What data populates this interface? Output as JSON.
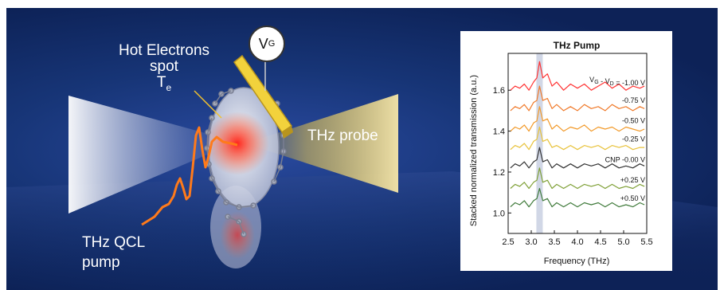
{
  "illustration": {
    "hot_label_line1": "Hot Electrons",
    "hot_label_line2": "spot",
    "te_main": "T",
    "te_sub": "e",
    "probe_label": "THz probe",
    "pump_label_line1": "THz QCL",
    "pump_label_line2": "pump",
    "vg_main": "V",
    "vg_sub": "G",
    "colors": {
      "background": "#0d2257",
      "pump_pulse": "#ff7a1a",
      "hot_spot": "#ff2a1a",
      "electrode": "#f2d23c",
      "probe_beam": "#e8c64a"
    }
  },
  "chart_data": {
    "type": "line",
    "title": "THz Pump",
    "xlabel": "Frequency (THz)",
    "ylabel": "Stacked normalized transmission (a.u.)",
    "xlim": [
      2.5,
      5.5
    ],
    "ylim": [
      0.9,
      1.78
    ],
    "xticks": [
      "2.5",
      "3.0",
      "3.5",
      "4.0",
      "4.5",
      "5.0",
      "5.5"
    ],
    "yticks": [
      "1.0",
      "1.2",
      "1.4",
      "1.6"
    ],
    "highlight_band_x": 3.18,
    "series": [
      {
        "name": "V_G - V_D = -1.00 V",
        "label_main": "V",
        "label_sub1": "G",
        "label_mid": " - V",
        "label_sub2": "D",
        "label_end": " = -1.00 V",
        "color": "#ff3333",
        "offset": 1.62,
        "x": [
          2.55,
          2.65,
          2.75,
          2.85,
          2.95,
          3.05,
          3.12,
          3.18,
          3.25,
          3.35,
          3.45,
          3.55,
          3.7,
          3.85,
          4.0,
          4.15,
          4.3,
          4.45,
          4.6,
          4.75,
          4.9,
          5.05,
          5.2,
          5.35,
          5.45
        ],
        "y": [
          1.6,
          1.62,
          1.61,
          1.63,
          1.6,
          1.64,
          1.66,
          1.74,
          1.66,
          1.68,
          1.62,
          1.64,
          1.6,
          1.63,
          1.61,
          1.63,
          1.6,
          1.62,
          1.64,
          1.61,
          1.63,
          1.6,
          1.62,
          1.61,
          1.62
        ]
      },
      {
        "name": "-0.75 V",
        "color": "#f07a2a",
        "offset": 1.52,
        "x": [
          2.55,
          2.65,
          2.75,
          2.85,
          2.95,
          3.05,
          3.12,
          3.18,
          3.25,
          3.35,
          3.45,
          3.55,
          3.7,
          3.85,
          4.0,
          4.15,
          4.3,
          4.45,
          4.6,
          4.75,
          4.9,
          5.05,
          5.2,
          5.35,
          5.45
        ],
        "y": [
          1.5,
          1.52,
          1.51,
          1.53,
          1.5,
          1.54,
          1.55,
          1.62,
          1.55,
          1.56,
          1.51,
          1.53,
          1.5,
          1.52,
          1.5,
          1.53,
          1.51,
          1.52,
          1.5,
          1.53,
          1.51,
          1.52,
          1.5,
          1.52,
          1.51
        ]
      },
      {
        "name": "-0.50 V",
        "color": "#f29a2a",
        "offset": 1.42,
        "x": [
          2.55,
          2.65,
          2.75,
          2.85,
          2.95,
          3.05,
          3.12,
          3.18,
          3.25,
          3.35,
          3.45,
          3.55,
          3.7,
          3.85,
          4.0,
          4.15,
          4.3,
          4.45,
          4.6,
          4.75,
          4.9,
          5.05,
          5.2,
          5.35,
          5.45
        ],
        "y": [
          1.4,
          1.42,
          1.41,
          1.43,
          1.4,
          1.44,
          1.45,
          1.52,
          1.45,
          1.46,
          1.41,
          1.43,
          1.4,
          1.42,
          1.41,
          1.43,
          1.4,
          1.42,
          1.41,
          1.42,
          1.4,
          1.42,
          1.41,
          1.4,
          1.41
        ]
      },
      {
        "name": "-0.25 V",
        "color": "#e8c23a",
        "offset": 1.33,
        "x": [
          2.55,
          2.65,
          2.75,
          2.85,
          2.95,
          3.05,
          3.12,
          3.18,
          3.25,
          3.35,
          3.45,
          3.55,
          3.7,
          3.85,
          4.0,
          4.15,
          4.3,
          4.45,
          4.6,
          4.75,
          4.9,
          5.05,
          5.2,
          5.35,
          5.45
        ],
        "y": [
          1.31,
          1.33,
          1.32,
          1.34,
          1.31,
          1.35,
          1.36,
          1.42,
          1.35,
          1.36,
          1.32,
          1.33,
          1.31,
          1.33,
          1.31,
          1.33,
          1.32,
          1.33,
          1.31,
          1.33,
          1.32,
          1.33,
          1.31,
          1.32,
          1.32
        ]
      },
      {
        "name": "CNP -0.00 V",
        "color": "#333333",
        "offset": 1.23,
        "x": [
          2.55,
          2.65,
          2.75,
          2.85,
          2.95,
          3.05,
          3.12,
          3.18,
          3.25,
          3.35,
          3.45,
          3.55,
          3.7,
          3.85,
          4.0,
          4.15,
          4.3,
          4.45,
          4.6,
          4.75,
          4.9,
          5.05,
          5.2,
          5.35,
          5.45
        ],
        "y": [
          1.22,
          1.24,
          1.23,
          1.25,
          1.22,
          1.25,
          1.26,
          1.32,
          1.25,
          1.26,
          1.22,
          1.24,
          1.22,
          1.24,
          1.22,
          1.24,
          1.23,
          1.24,
          1.22,
          1.24,
          1.22,
          1.23,
          1.22,
          1.24,
          1.23
        ]
      },
      {
        "name": "+0.25 V",
        "color": "#7fa036",
        "offset": 1.13,
        "x": [
          2.55,
          2.65,
          2.75,
          2.85,
          2.95,
          3.05,
          3.12,
          3.18,
          3.25,
          3.35,
          3.45,
          3.55,
          3.7,
          3.85,
          4.0,
          4.15,
          4.3,
          4.45,
          4.6,
          4.75,
          4.9,
          5.05,
          5.2,
          5.35,
          5.45
        ],
        "y": [
          1.12,
          1.14,
          1.13,
          1.15,
          1.12,
          1.15,
          1.16,
          1.22,
          1.15,
          1.16,
          1.12,
          1.14,
          1.12,
          1.14,
          1.12,
          1.14,
          1.13,
          1.14,
          1.12,
          1.14,
          1.12,
          1.13,
          1.12,
          1.14,
          1.13
        ]
      },
      {
        "name": "+0.50 V",
        "color": "#3f7a3a",
        "offset": 1.04,
        "x": [
          2.55,
          2.65,
          2.75,
          2.85,
          2.95,
          3.05,
          3.12,
          3.18,
          3.25,
          3.35,
          3.45,
          3.55,
          3.7,
          3.85,
          4.0,
          4.15,
          4.3,
          4.45,
          4.6,
          4.75,
          4.9,
          5.05,
          5.2,
          5.35,
          5.45
        ],
        "y": [
          1.03,
          1.05,
          1.04,
          1.06,
          1.03,
          1.06,
          1.07,
          1.12,
          1.06,
          1.07,
          1.03,
          1.05,
          1.03,
          1.05,
          1.03,
          1.05,
          1.04,
          1.05,
          1.03,
          1.05,
          1.03,
          1.04,
          1.03,
          1.05,
          1.04
        ]
      }
    ]
  }
}
